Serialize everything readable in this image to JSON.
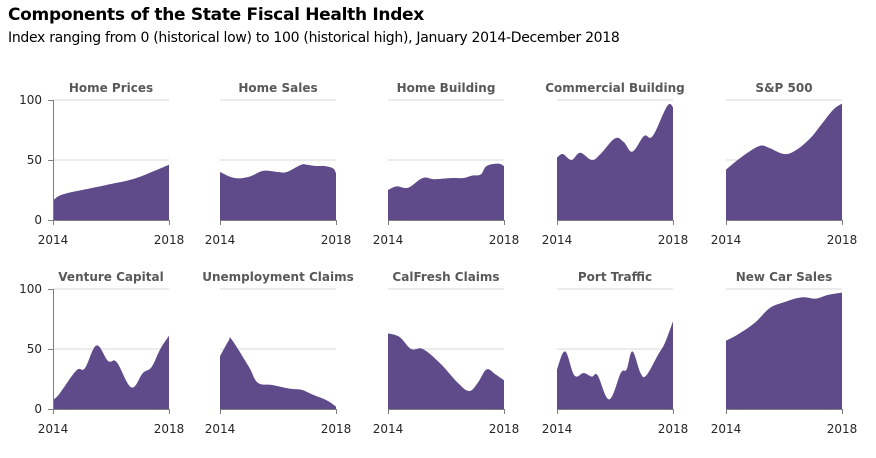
{
  "header": {
    "title": "Components of the State Fiscal Health Index",
    "subtitle": "Index ranging from 0 (historical low) to 100 (historical high), January 2014-December 2018"
  },
  "colors": {
    "area_fill": "#604b8a",
    "gridline": "#d9d9d9",
    "axis": "#7f7f7f"
  },
  "chart_data": [
    {
      "type": "area",
      "title": "Home Prices",
      "xlabel": "",
      "ylabel": "",
      "x_ticks": [
        "2014",
        "2018"
      ],
      "y_ticks": [
        "0",
        "50",
        "100"
      ],
      "xlim": [
        2014,
        2018
      ],
      "ylim": [
        0,
        100
      ],
      "grid": true,
      "x": [
        2014.0,
        2014.2,
        2014.6,
        2015.0,
        2015.4,
        2015.8,
        2016.2,
        2016.6,
        2017.0,
        2017.4,
        2017.8,
        2018.0
      ],
      "values": [
        16,
        20,
        23,
        25,
        27,
        29,
        31,
        33,
        36,
        40,
        44,
        46
      ]
    },
    {
      "type": "area",
      "title": "Home Sales",
      "xlabel": "",
      "ylabel": "",
      "x_ticks": [
        "2014",
        "2018"
      ],
      "y_ticks": [
        "0",
        "50",
        "100"
      ],
      "xlim": [
        2014,
        2018
      ],
      "ylim": [
        0,
        100
      ],
      "grid": true,
      "x": [
        2014.0,
        2014.5,
        2015.0,
        2015.5,
        2016.0,
        2016.3,
        2016.8,
        2017.0,
        2017.3,
        2017.6,
        2017.9,
        2018.0
      ],
      "values": [
        40,
        35,
        36,
        41,
        40,
        40,
        46,
        46,
        45,
        45,
        43,
        39
      ]
    },
    {
      "type": "area",
      "title": "Home Building",
      "xlabel": "",
      "ylabel": "",
      "x_ticks": [
        "2014",
        "2018"
      ],
      "y_ticks": [
        "0",
        "50",
        "100"
      ],
      "xlim": [
        2014,
        2018
      ],
      "ylim": [
        0,
        100
      ],
      "grid": true,
      "x": [
        2014.0,
        2014.3,
        2014.7,
        2015.2,
        2015.6,
        2016.2,
        2016.6,
        2016.9,
        2017.2,
        2017.4,
        2017.8,
        2018.0
      ],
      "values": [
        25,
        28,
        27,
        35,
        34,
        35,
        35,
        37,
        38,
        45,
        47,
        45
      ]
    },
    {
      "type": "area",
      "title": "Commercial Building",
      "xlabel": "",
      "ylabel": "",
      "x_ticks": [
        "2014",
        "2018"
      ],
      "y_ticks": [
        "0",
        "50",
        "100"
      ],
      "xlim": [
        2014,
        2018
      ],
      "ylim": [
        0,
        100
      ],
      "grid": true,
      "x": [
        2014.0,
        2014.2,
        2014.5,
        2014.8,
        2015.2,
        2015.5,
        2016.0,
        2016.3,
        2016.6,
        2017.0,
        2017.3,
        2017.8,
        2018.0
      ],
      "values": [
        52,
        55,
        50,
        56,
        50,
        55,
        68,
        65,
        57,
        70,
        70,
        95,
        94
      ]
    },
    {
      "type": "area",
      "title": "S&P 500",
      "xlabel": "",
      "ylabel": "",
      "x_ticks": [
        "2014",
        "2018"
      ],
      "y_ticks": [
        "0",
        "50",
        "100"
      ],
      "xlim": [
        2014,
        2018
      ],
      "ylim": [
        0,
        100
      ],
      "grid": true,
      "x": [
        2014.0,
        2014.4,
        2014.8,
        2015.2,
        2015.5,
        2016.0,
        2016.4,
        2016.9,
        2017.3,
        2017.7,
        2018.0
      ],
      "values": [
        42,
        50,
        57,
        62,
        60,
        55,
        58,
        68,
        80,
        92,
        97
      ]
    },
    {
      "type": "area",
      "title": "Venture Capital",
      "xlabel": "",
      "ylabel": "",
      "x_ticks": [
        "2014",
        "2018"
      ],
      "y_ticks": [
        "0",
        "50",
        "100"
      ],
      "xlim": [
        2014,
        2018
      ],
      "ylim": [
        0,
        100
      ],
      "grid": true,
      "x": [
        2014.0,
        2014.2,
        2014.8,
        2015.1,
        2015.5,
        2015.9,
        2016.2,
        2016.7,
        2017.1,
        2017.4,
        2017.7,
        2018.0
      ],
      "values": [
        8,
        12,
        32,
        34,
        53,
        40,
        39,
        18,
        30,
        35,
        50,
        61
      ]
    },
    {
      "type": "area",
      "title": "Unemployment Claims",
      "xlabel": "",
      "ylabel": "",
      "x_ticks": [
        "2014",
        "2018"
      ],
      "y_ticks": [
        "0",
        "50",
        "100"
      ],
      "xlim": [
        2014,
        2018
      ],
      "ylim": [
        0,
        100
      ],
      "grid": true,
      "x": [
        2014.0,
        2014.3,
        2014.4,
        2015.0,
        2015.3,
        2015.8,
        2016.4,
        2016.8,
        2017.2,
        2017.7,
        2018.0
      ],
      "values": [
        44,
        57,
        58,
        35,
        22,
        20,
        17,
        16,
        12,
        7,
        2
      ]
    },
    {
      "type": "area",
      "title": "CalFresh Claims",
      "xlabel": "",
      "ylabel": "",
      "x_ticks": [
        "2014",
        "2018"
      ],
      "y_ticks": [
        "0",
        "50",
        "100"
      ],
      "xlim": [
        2014,
        2018
      ],
      "ylim": [
        0,
        100
      ],
      "grid": true,
      "x": [
        2014.0,
        2014.4,
        2014.8,
        2015.2,
        2015.8,
        2016.4,
        2016.8,
        2017.1,
        2017.4,
        2017.7,
        2018.0
      ],
      "values": [
        63,
        60,
        50,
        50,
        38,
        22,
        15,
        22,
        33,
        29,
        24
      ]
    },
    {
      "type": "area",
      "title": "Port Traffic",
      "xlabel": "",
      "ylabel": "",
      "x_ticks": [
        "2014",
        "2018"
      ],
      "y_ticks": [
        "0",
        "50",
        "100"
      ],
      "xlim": [
        2014,
        2018
      ],
      "ylim": [
        0,
        100
      ],
      "grid": true,
      "x": [
        2014.0,
        2014.28,
        2014.6,
        2014.92,
        2015.2,
        2015.4,
        2015.8,
        2016.2,
        2016.4,
        2016.6,
        2016.88,
        2017.08,
        2017.48,
        2017.72,
        2018.0
      ],
      "values": [
        33,
        48,
        28,
        30,
        27,
        28,
        8,
        30,
        33,
        48,
        30,
        28,
        45,
        55,
        73
      ]
    },
    {
      "type": "area",
      "title": "New Car Sales",
      "xlabel": "",
      "ylabel": "",
      "x_ticks": [
        "2014",
        "2018"
      ],
      "y_ticks": [
        "0",
        "50",
        "100"
      ],
      "xlim": [
        2014,
        2018
      ],
      "ylim": [
        0,
        100
      ],
      "grid": true,
      "x": [
        2014.0,
        2014.4,
        2015.0,
        2015.5,
        2016.0,
        2016.6,
        2017.1,
        2017.5,
        2018.0
      ],
      "values": [
        57,
        62,
        72,
        84,
        89,
        93,
        92,
        95,
        97
      ]
    }
  ]
}
